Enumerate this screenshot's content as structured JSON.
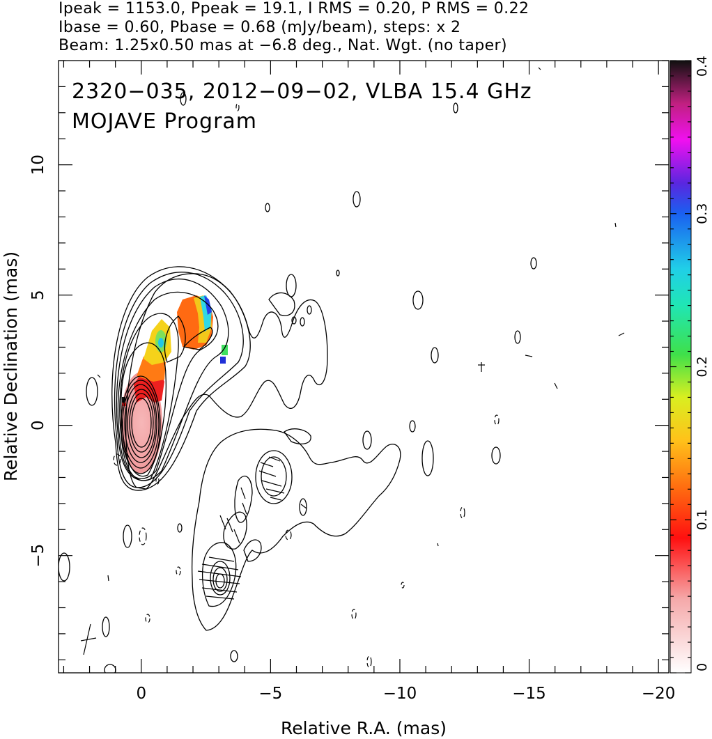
{
  "header": {
    "line1": "Ipeak = 1153.0, Ppeak = 19.1, I RMS = 0.20, P RMS = 0.22",
    "line2": "Ibase = 0.60, Pbase = 0.68 (mJy/beam), steps: x 2",
    "line3": "Beam: 1.25x0.50 mas at −6.8 deg., Nat. Wgt. (no taper)"
  },
  "chart_data": {
    "type": "heatmap",
    "title": "2320−035, 2012−09−02, VLBA 15.4 GHz",
    "subtitle": "MOJAVE Program",
    "xlabel": "Relative R.A. (mas)",
    "ylabel": "Relative Declination (mas)",
    "xlim": [
      3.2,
      -20.4
    ],
    "ylim": [
      -9.5,
      14
    ],
    "xticks": [
      0,
      -5,
      -10,
      -15,
      -20
    ],
    "xtick_labels": [
      "0",
      "−5",
      "−10",
      "−15",
      "−20"
    ],
    "yticks": [
      -5,
      0,
      5,
      10
    ],
    "ytick_labels": [
      "−5",
      "0",
      "5",
      "10"
    ],
    "colorbar": {
      "range": [
        0,
        0.4
      ],
      "ticks": [
        0,
        0.1,
        0.2,
        0.3,
        0.4
      ],
      "tick_labels": [
        "0",
        "0.1",
        "0.2",
        "0.3",
        "0.4"
      ]
    },
    "fractional_polarization_patches": [
      {
        "x": 0.0,
        "y": 0.3,
        "level": 0.03
      },
      {
        "x": -0.5,
        "y": 1.5,
        "level": 0.07
      },
      {
        "x": -0.6,
        "y": 2.6,
        "level": 0.12
      },
      {
        "x": -0.75,
        "y": 3.2,
        "level": 0.19
      },
      {
        "x": -2.0,
        "y": 4.0,
        "level": 0.12
      },
      {
        "x": -2.5,
        "y": 4.2,
        "level": 0.27
      },
      {
        "x": -3.1,
        "y": 2.8,
        "level": 0.2
      },
      {
        "x": -3.1,
        "y": 2.4,
        "level": 0.31
      }
    ],
    "grid": false,
    "colors": {
      "core_pink": "#f4a5a8",
      "red": "#ee2222",
      "orange": "#ff7a14",
      "yellow": "#f2d41a",
      "green": "#4de06a",
      "cyan": "#33d6e6",
      "blue": "#2244e6"
    }
  }
}
